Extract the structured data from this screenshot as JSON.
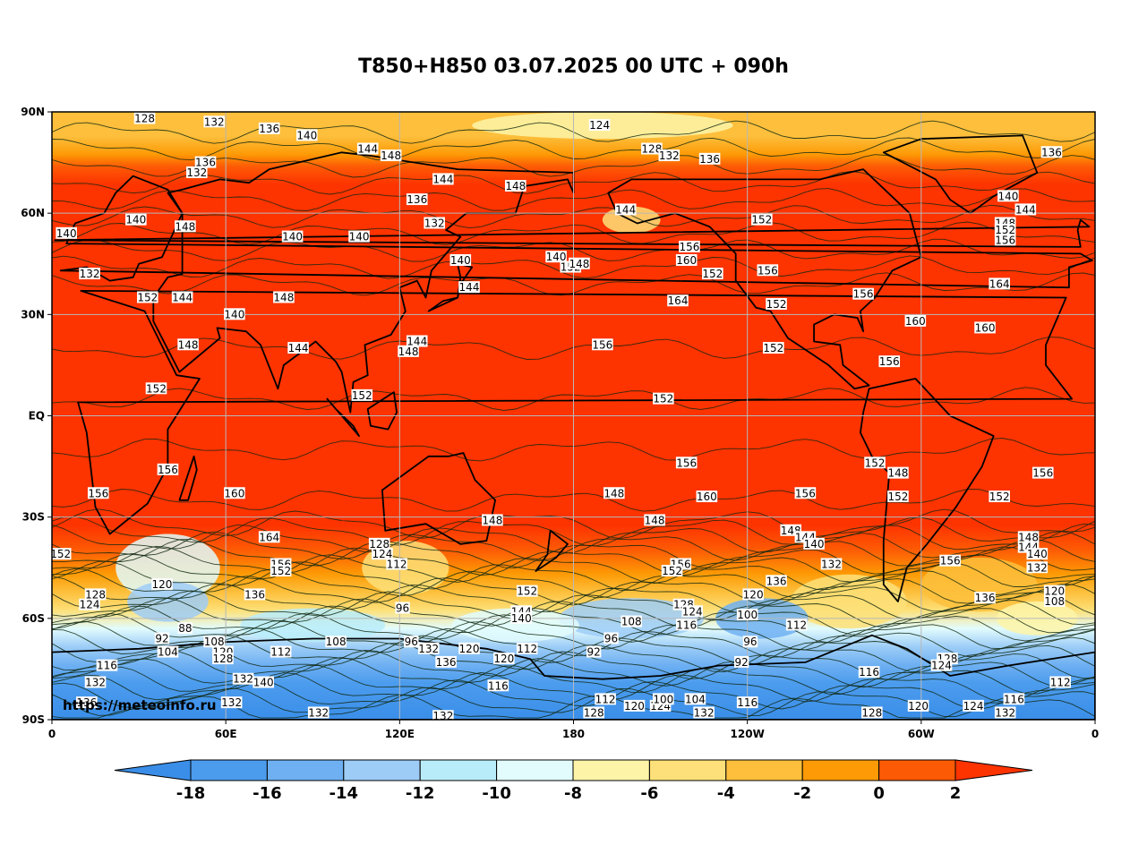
{
  "title": "T850+H850 03.07.2025 00 UTC + 090h",
  "source_url": "https://meteoinfo.ru",
  "lat_ticks": [
    "90N",
    "60N",
    "30N",
    "EQ",
    "30S",
    "60S",
    "90S"
  ],
  "lon_ticks": [
    "0",
    "60E",
    "120E",
    "180",
    "120W",
    "60W",
    "0"
  ],
  "colorbar": {
    "labels": [
      "-18",
      "-16",
      "-14",
      "-12",
      "-10",
      "-8",
      "-6",
      "-4",
      "-2",
      "0",
      "2"
    ],
    "colors": [
      "#3a8ee8",
      "#4c9cee",
      "#6eb0f2",
      "#9dcdf7",
      "#b9ecf9",
      "#e2fcfd",
      "#fdf4a8",
      "#fde079",
      "#fdbf3c",
      "#fd9a05",
      "#fd5a05",
      "#fd3300"
    ]
  },
  "palette": {
    "warm": "#fd3300",
    "grid": "#b8b8b8",
    "contour": "#102810",
    "coast": "#000000"
  },
  "contour_labels": [
    {
      "text": "128",
      "lon": 32,
      "lat": 88
    },
    {
      "text": "132",
      "lon": 56,
      "lat": 87
    },
    {
      "text": "136",
      "lon": 75,
      "lat": 85
    },
    {
      "text": "140",
      "lon": 88,
      "lat": 83
    },
    {
      "text": "124",
      "lon": 189,
      "lat": 86
    },
    {
      "text": "128",
      "lon": 207,
      "lat": 79
    },
    {
      "text": "132",
      "lon": 213,
      "lat": 77
    },
    {
      "text": "136",
      "lon": 227,
      "lat": 76
    },
    {
      "text": "136",
      "lon": 345,
      "lat": 78
    },
    {
      "text": "136",
      "lon": 53,
      "lat": 75
    },
    {
      "text": "132",
      "lon": 50,
      "lat": 72
    },
    {
      "text": "144",
      "lon": 109,
      "lat": 79
    },
    {
      "text": "148",
      "lon": 117,
      "lat": 77
    },
    {
      "text": "144",
      "lon": 135,
      "lat": 70
    },
    {
      "text": "148",
      "lon": 160,
      "lat": 68
    },
    {
      "text": "136",
      "lon": 126,
      "lat": 64
    },
    {
      "text": "132",
      "lon": 132,
      "lat": 57
    },
    {
      "text": "144",
      "lon": 198,
      "lat": 61
    },
    {
      "text": "140",
      "lon": 29,
      "lat": 58
    },
    {
      "text": "148",
      "lon": 46,
      "lat": 56
    },
    {
      "text": "140",
      "lon": 5,
      "lat": 54
    },
    {
      "text": "140",
      "lon": 83,
      "lat": 53
    },
    {
      "text": "140",
      "lon": 106,
      "lat": 53
    },
    {
      "text": "132",
      "lon": 13,
      "lat": 42
    },
    {
      "text": "152",
      "lon": 33,
      "lat": 35
    },
    {
      "text": "144",
      "lon": 45,
      "lat": 35
    },
    {
      "text": "148",
      "lon": 80,
      "lat": 35
    },
    {
      "text": "140",
      "lon": 63,
      "lat": 30
    },
    {
      "text": "148",
      "lon": 47,
      "lat": 21
    },
    {
      "text": "144",
      "lon": 85,
      "lat": 20
    },
    {
      "text": "148",
      "lon": 123,
      "lat": 19
    },
    {
      "text": "144",
      "lon": 126,
      "lat": 22
    },
    {
      "text": "140",
      "lon": 141,
      "lat": 46
    },
    {
      "text": "144",
      "lon": 144,
      "lat": 38
    },
    {
      "text": "140",
      "lon": 174,
      "lat": 47
    },
    {
      "text": "152",
      "lon": 179,
      "lat": 44
    },
    {
      "text": "148",
      "lon": 182,
      "lat": 45
    },
    {
      "text": "156",
      "lon": 220,
      "lat": 50
    },
    {
      "text": "160",
      "lon": 219,
      "lat": 46
    },
    {
      "text": "164",
      "lon": 216,
      "lat": 34
    },
    {
      "text": "156",
      "lon": 190,
      "lat": 21
    },
    {
      "text": "152",
      "lon": 245,
      "lat": 58
    },
    {
      "text": "152",
      "lon": 228,
      "lat": 42
    },
    {
      "text": "156",
      "lon": 247,
      "lat": 43
    },
    {
      "text": "152",
      "lon": 250,
      "lat": 33
    },
    {
      "text": "152",
      "lon": 249,
      "lat": 20
    },
    {
      "text": "156",
      "lon": 280,
      "lat": 36
    },
    {
      "text": "160",
      "lon": 298,
      "lat": 28
    },
    {
      "text": "160",
      "lon": 322,
      "lat": 26
    },
    {
      "text": "156",
      "lon": 289,
      "lat": 16
    },
    {
      "text": "164",
      "lon": 327,
      "lat": 39
    },
    {
      "text": "140",
      "lon": 330,
      "lat": 65
    },
    {
      "text": "144",
      "lon": 336,
      "lat": 61
    },
    {
      "text": "148",
      "lon": 329,
      "lat": 57
    },
    {
      "text": "152",
      "lon": 329,
      "lat": 55
    },
    {
      "text": "156",
      "lon": 329,
      "lat": 52
    },
    {
      "text": "152",
      "lon": 36,
      "lat": 8
    },
    {
      "text": "152",
      "lon": 107,
      "lat": 6
    },
    {
      "text": "152",
      "lon": 211,
      "lat": 5
    },
    {
      "text": "156",
      "lon": 219,
      "lat": -14
    },
    {
      "text": "156",
      "lon": 40,
      "lat": -16
    },
    {
      "text": "156",
      "lon": 16,
      "lat": -23
    },
    {
      "text": "160",
      "lon": 63,
      "lat": -23
    },
    {
      "text": "160",
      "lon": 226,
      "lat": -24
    },
    {
      "text": "148",
      "lon": 194,
      "lat": -23
    },
    {
      "text": "156",
      "lon": 260,
      "lat": -23
    },
    {
      "text": "152",
      "lon": 284,
      "lat": -14
    },
    {
      "text": "148",
      "lon": 292,
      "lat": -17
    },
    {
      "text": "152",
      "lon": 292,
      "lat": -24
    },
    {
      "text": "152",
      "lon": 327,
      "lat": -24
    },
    {
      "text": "156",
      "lon": 342,
      "lat": -17
    },
    {
      "text": "148",
      "lon": 152,
      "lat": -31
    },
    {
      "text": "148",
      "lon": 208,
      "lat": -31
    },
    {
      "text": "164",
      "lon": 75,
      "lat": -36
    },
    {
      "text": "152",
      "lon": 3,
      "lat": -41
    },
    {
      "text": "128",
      "lon": 113,
      "lat": -38
    },
    {
      "text": "124",
      "lon": 114,
      "lat": -41
    },
    {
      "text": "112",
      "lon": 119,
      "lat": -44
    },
    {
      "text": "156",
      "lon": 79,
      "lat": -44
    },
    {
      "text": "152",
      "lon": 79,
      "lat": -46
    },
    {
      "text": "148",
      "lon": 255,
      "lat": -34
    },
    {
      "text": "144",
      "lon": 260,
      "lat": -36
    },
    {
      "text": "140",
      "lon": 263,
      "lat": -38
    },
    {
      "text": "132",
      "lon": 269,
      "lat": -44
    },
    {
      "text": "156",
      "lon": 217,
      "lat": -44
    },
    {
      "text": "152",
      "lon": 214,
      "lat": -46
    },
    {
      "text": "136",
      "lon": 250,
      "lat": -49
    },
    {
      "text": "120",
      "lon": 242,
      "lat": -53
    },
    {
      "text": "156",
      "lon": 310,
      "lat": -43
    },
    {
      "text": "148",
      "lon": 337,
      "lat": -36
    },
    {
      "text": "144",
      "lon": 337,
      "lat": -39
    },
    {
      "text": "140",
      "lon": 340,
      "lat": -41
    },
    {
      "text": "132",
      "lon": 340,
      "lat": -45
    },
    {
      "text": "120",
      "lon": 346,
      "lat": -52
    },
    {
      "text": "108",
      "lon": 346,
      "lat": -55
    },
    {
      "text": "136",
      "lon": 322,
      "lat": -54
    },
    {
      "text": "128",
      "lon": 15,
      "lat": -53
    },
    {
      "text": "124",
      "lon": 13,
      "lat": -56
    },
    {
      "text": "120",
      "lon": 38,
      "lat": -50
    },
    {
      "text": "136",
      "lon": 70,
      "lat": -53
    },
    {
      "text": "88",
      "lon": 46,
      "lat": -63
    },
    {
      "text": "92",
      "lon": 38,
      "lat": -66
    },
    {
      "text": "104",
      "lon": 40,
      "lat": -70
    },
    {
      "text": "108",
      "lon": 56,
      "lat": -67
    },
    {
      "text": "120",
      "lon": 59,
      "lat": -70
    },
    {
      "text": "128",
      "lon": 59,
      "lat": -72
    },
    {
      "text": "112",
      "lon": 79,
      "lat": -70
    },
    {
      "text": "108",
      "lon": 98,
      "lat": -67
    },
    {
      "text": "96",
      "lon": 121,
      "lat": -57
    },
    {
      "text": "96",
      "lon": 124,
      "lat": -67
    },
    {
      "text": "132",
      "lon": 130,
      "lat": -69
    },
    {
      "text": "136",
      "lon": 136,
      "lat": -73
    },
    {
      "text": "120",
      "lon": 144,
      "lat": -69
    },
    {
      "text": "152",
      "lon": 164,
      "lat": -52
    },
    {
      "text": "144",
      "lon": 162,
      "lat": -58
    },
    {
      "text": "140",
      "lon": 162,
      "lat": -60
    },
    {
      "text": "112",
      "lon": 164,
      "lat": -69
    },
    {
      "text": "120",
      "lon": 156,
      "lat": -72
    },
    {
      "text": "116",
      "lon": 154,
      "lat": -80
    },
    {
      "text": "92",
      "lon": 187,
      "lat": -70
    },
    {
      "text": "96",
      "lon": 193,
      "lat": -66
    },
    {
      "text": "108",
      "lon": 200,
      "lat": -61
    },
    {
      "text": "128",
      "lon": 218,
      "lat": -56
    },
    {
      "text": "124",
      "lon": 221,
      "lat": -58
    },
    {
      "text": "116",
      "lon": 219,
      "lat": -62
    },
    {
      "text": "100",
      "lon": 240,
      "lat": -59
    },
    {
      "text": "96",
      "lon": 241,
      "lat": -67
    },
    {
      "text": "92",
      "lon": 238,
      "lat": -73
    },
    {
      "text": "112",
      "lon": 257,
      "lat": -62
    },
    {
      "text": "116",
      "lon": 282,
      "lat": -76
    },
    {
      "text": "128",
      "lon": 309,
      "lat": -72
    },
    {
      "text": "124",
      "lon": 307,
      "lat": -74
    },
    {
      "text": "116",
      "lon": 19,
      "lat": -74
    },
    {
      "text": "132",
      "lon": 15,
      "lat": -79
    },
    {
      "text": "136",
      "lon": 12,
      "lat": -85
    },
    {
      "text": "132",
      "lon": 66,
      "lat": -78
    },
    {
      "text": "140",
      "lon": 73,
      "lat": -79
    },
    {
      "text": "132",
      "lon": 62,
      "lat": -85
    },
    {
      "text": "132",
      "lon": 92,
      "lat": -88
    },
    {
      "text": "132",
      "lon": 135,
      "lat": -89
    },
    {
      "text": "112",
      "lon": 191,
      "lat": -84
    },
    {
      "text": "120",
      "lon": 201,
      "lat": -86
    },
    {
      "text": "124",
      "lon": 210,
      "lat": -86
    },
    {
      "text": "100",
      "lon": 211,
      "lat": -84
    },
    {
      "text": "104",
      "lon": 222,
      "lat": -84
    },
    {
      "text": "132",
      "lon": 225,
      "lat": -88
    },
    {
      "text": "116",
      "lon": 240,
      "lat": -85
    },
    {
      "text": "128",
      "lon": 187,
      "lat": -88
    },
    {
      "text": "128",
      "lon": 283,
      "lat": -88
    },
    {
      "text": "120",
      "lon": 299,
      "lat": -86
    },
    {
      "text": "124",
      "lon": 318,
      "lat": -86
    },
    {
      "text": "116",
      "lon": 332,
      "lat": -84
    },
    {
      "text": "132",
      "lon": 329,
      "lat": -88
    },
    {
      "text": "112",
      "lon": 348,
      "lat": -79
    }
  ]
}
